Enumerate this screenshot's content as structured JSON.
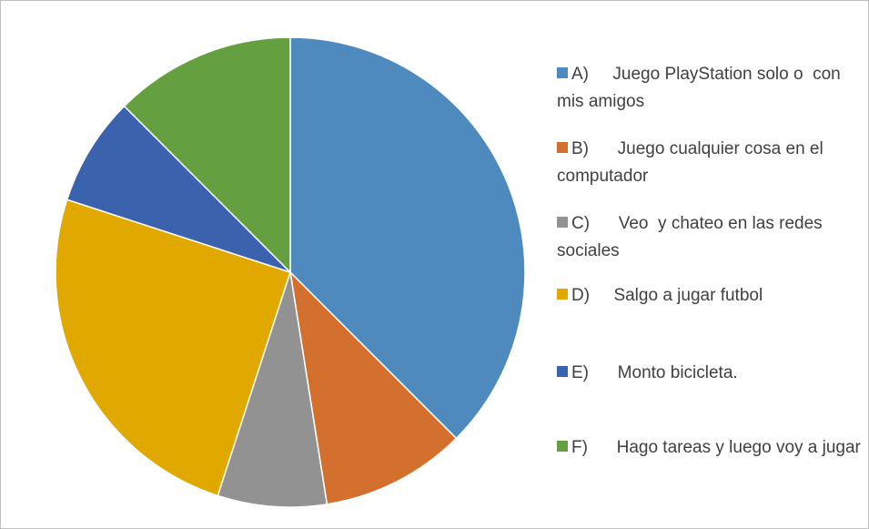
{
  "chart_data": {
    "type": "pie",
    "categories": [
      "A)     Juego PlayStation solo o  con mis amigos",
      "B)      Juego cualquier cosa en el computador",
      "C)      Veo  y chateo en las redes sociales",
      "D)     Salgo a jugar futbol",
      "E)      Monto bicicleta.",
      "F)      Hago tareas y luego voy a jugar"
    ],
    "values": [
      37.5,
      10,
      7.5,
      25,
      7.5,
      12.5
    ],
    "colors": [
      "#4e8abe",
      "#d4702d",
      "#929292",
      "#e1a800",
      "#3b63ad",
      "#65a040"
    ],
    "legend": "right"
  }
}
